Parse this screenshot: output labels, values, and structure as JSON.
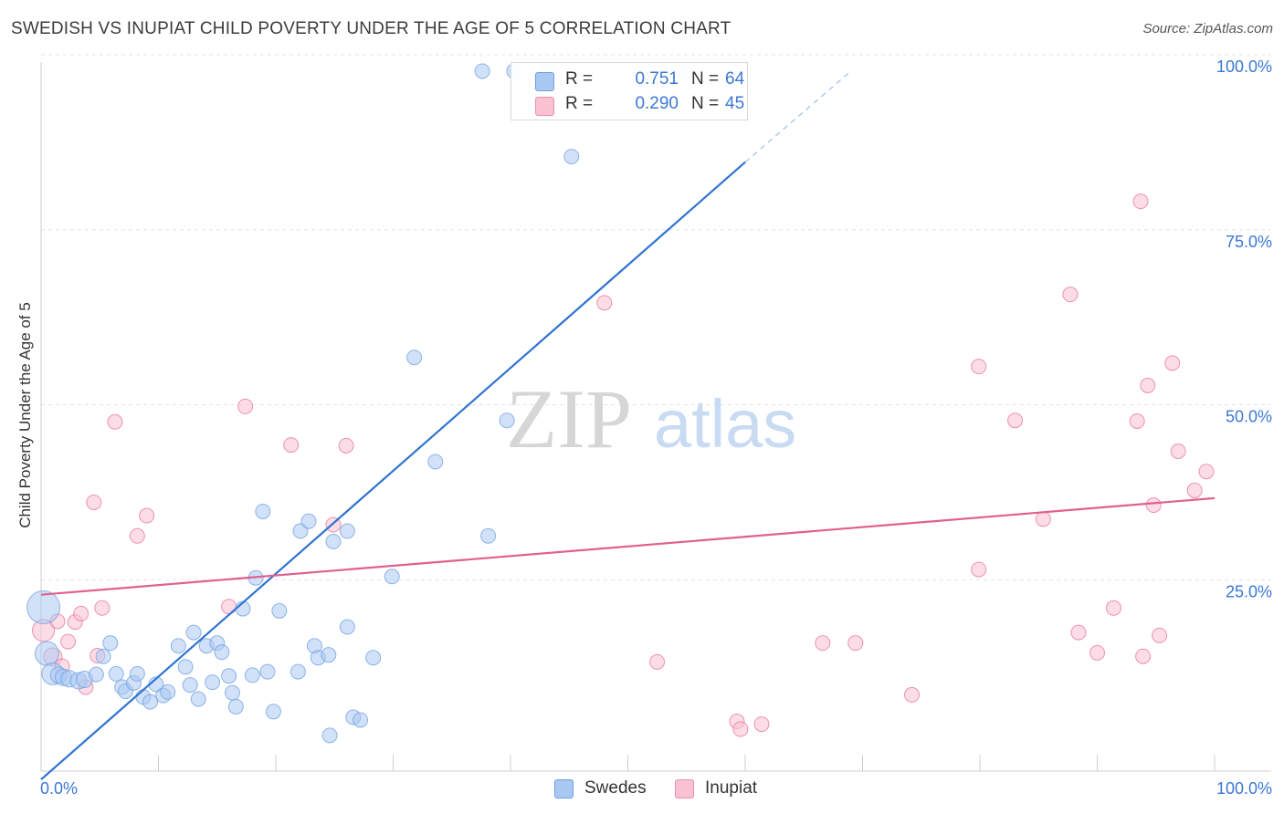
{
  "title": "SWEDISH VS INUPIAT CHILD POVERTY UNDER THE AGE OF 5 CORRELATION CHART",
  "source": "Source: ZipAtlas.com",
  "watermark": {
    "zip": "ZIP",
    "atlas": "atlas"
  },
  "legend": {
    "r_label": "R =",
    "n_label": "N =",
    "rows": [
      {
        "r": "0.751",
        "n": "64",
        "color": "#a9c9f3",
        "border": "#6f9fe0"
      },
      {
        "r": "0.290",
        "n": "45",
        "color": "#f9c1d2",
        "border": "#e891ad"
      }
    ]
  },
  "chart_data": {
    "type": "scatter",
    "title": "SWEDISH VS INUPIAT CHILD POVERTY UNDER THE AGE OF 5 CORRELATION CHART",
    "xlabel": "",
    "ylabel": "Child Poverty Under the Age of 5",
    "xlim": [
      0,
      100
    ],
    "ylim": [
      0,
      100
    ],
    "x_tick_labels": [
      "0.0%",
      "100.0%"
    ],
    "y_tick_labels": [
      "25.0%",
      "50.0%",
      "75.0%",
      "100.0%"
    ],
    "grid": true,
    "legend_position": "bottom",
    "series": [
      {
        "name": "Swedes",
        "color": "#6f9fe0",
        "fill": "#a9c9f3",
        "r": 0.751,
        "n": 64,
        "trend": {
          "x0": 0,
          "y0": -1.2,
          "x1": 60,
          "y1": 87,
          "dashed_to": {
            "x": 69,
            "y": 100
          }
        },
        "points": [
          [
            0.2,
            23.4,
            17
          ],
          [
            0.5,
            16.8,
            12
          ],
          [
            1.0,
            13.9,
            11
          ],
          [
            1.5,
            13.7,
            8
          ],
          [
            1.9,
            13.4,
            8
          ],
          [
            2.4,
            13.2,
            8
          ],
          [
            3.2,
            12.9,
            8
          ],
          [
            3.7,
            13.1,
            8
          ],
          [
            4.7,
            13.8,
            7
          ],
          [
            5.3,
            16.4,
            7
          ],
          [
            5.9,
            18.3,
            7
          ],
          [
            6.4,
            13.9,
            7
          ],
          [
            6.9,
            12.0,
            7
          ],
          [
            7.2,
            11.4,
            7
          ],
          [
            7.9,
            12.6,
            7
          ],
          [
            8.2,
            13.9,
            7
          ],
          [
            8.7,
            10.6,
            7
          ],
          [
            9.3,
            9.9,
            7
          ],
          [
            9.8,
            12.4,
            7
          ],
          [
            10.4,
            10.8,
            7
          ],
          [
            10.8,
            11.3,
            7
          ],
          [
            11.7,
            17.9,
            7
          ],
          [
            12.3,
            14.9,
            7
          ],
          [
            12.7,
            12.3,
            7
          ],
          [
            13.0,
            19.8,
            7
          ],
          [
            13.4,
            10.3,
            7
          ],
          [
            14.1,
            17.9,
            7
          ],
          [
            14.6,
            12.7,
            7
          ],
          [
            15.0,
            18.3,
            7
          ],
          [
            15.4,
            17.0,
            7
          ],
          [
            16.0,
            13.6,
            7
          ],
          [
            16.3,
            11.2,
            7
          ],
          [
            16.6,
            9.2,
            7
          ],
          [
            17.2,
            23.2,
            7
          ],
          [
            18.0,
            13.7,
            7
          ],
          [
            18.3,
            27.6,
            7
          ],
          [
            18.9,
            37.1,
            7
          ],
          [
            19.3,
            14.2,
            7
          ],
          [
            19.8,
            8.5,
            7
          ],
          [
            20.3,
            22.9,
            7
          ],
          [
            21.9,
            14.2,
            7
          ],
          [
            22.1,
            34.3,
            7
          ],
          [
            22.8,
            35.7,
            7
          ],
          [
            23.3,
            17.9,
            7
          ],
          [
            23.6,
            16.2,
            7
          ],
          [
            24.5,
            16.6,
            7
          ],
          [
            24.6,
            5.1,
            7
          ],
          [
            24.9,
            32.8,
            7
          ],
          [
            26.1,
            34.3,
            7
          ],
          [
            26.1,
            20.6,
            7
          ],
          [
            26.6,
            7.7,
            7
          ],
          [
            27.2,
            7.3,
            7
          ],
          [
            28.3,
            16.2,
            7
          ],
          [
            29.9,
            27.8,
            7
          ],
          [
            31.8,
            59.1,
            7
          ],
          [
            33.6,
            44.2,
            7
          ],
          [
            37.6,
            100.0,
            7
          ],
          [
            38.1,
            33.6,
            7
          ],
          [
            39.7,
            50.1,
            7
          ],
          [
            40.3,
            100.0,
            7
          ],
          [
            43.1,
            100.0,
            7
          ],
          [
            45.2,
            87.8,
            7
          ],
          [
            54.2,
            100.0,
            7
          ],
          [
            54.8,
            100.0,
            7
          ]
        ]
      },
      {
        "name": "Inupiat",
        "color": "#e8709a",
        "fill": "#f9c1d2",
        "r": 0.29,
        "n": 45,
        "trend": {
          "x0": 0,
          "y0": 25.2,
          "x1": 100,
          "y1": 39.0
        },
        "points": [
          [
            0.2,
            20.1,
            11
          ],
          [
            1.0,
            16.3,
            9
          ],
          [
            1.4,
            21.4,
            7
          ],
          [
            1.8,
            15.0,
            7
          ],
          [
            2.3,
            18.5,
            7
          ],
          [
            2.9,
            21.3,
            7
          ],
          [
            3.4,
            22.5,
            7
          ],
          [
            3.8,
            12.0,
            7
          ],
          [
            4.5,
            38.4,
            7
          ],
          [
            4.8,
            16.5,
            7
          ],
          [
            5.2,
            23.3,
            7
          ],
          [
            6.3,
            49.9,
            7
          ],
          [
            8.2,
            33.6,
            7
          ],
          [
            9.0,
            36.5,
            7
          ],
          [
            16.0,
            23.5,
            7
          ],
          [
            17.4,
            52.1,
            7
          ],
          [
            21.3,
            46.6,
            7
          ],
          [
            24.9,
            35.2,
            7
          ],
          [
            26.0,
            46.5,
            7
          ],
          [
            48.0,
            66.9,
            7
          ],
          [
            52.5,
            15.6,
            7
          ],
          [
            59.3,
            7.1,
            7
          ],
          [
            59.6,
            6.0,
            7
          ],
          [
            61.4,
            6.7,
            7
          ],
          [
            66.6,
            18.3,
            7
          ],
          [
            69.4,
            18.3,
            7
          ],
          [
            74.2,
            10.9,
            7
          ],
          [
            79.9,
            57.8,
            7
          ],
          [
            79.9,
            28.8,
            7
          ],
          [
            83.0,
            50.1,
            7
          ],
          [
            85.4,
            36.0,
            7
          ],
          [
            87.7,
            68.1,
            7
          ],
          [
            88.4,
            19.8,
            7
          ],
          [
            90.0,
            16.9,
            7
          ],
          [
            91.4,
            23.3,
            7
          ],
          [
            93.4,
            50.0,
            7
          ],
          [
            93.7,
            81.4,
            7
          ],
          [
            93.9,
            16.4,
            7
          ],
          [
            94.3,
            55.1,
            7
          ],
          [
            94.8,
            38.0,
            7
          ],
          [
            95.3,
            19.4,
            7
          ],
          [
            96.4,
            58.3,
            7
          ],
          [
            96.9,
            45.7,
            7
          ],
          [
            98.3,
            40.1,
            7
          ],
          [
            99.3,
            42.8,
            7
          ]
        ]
      }
    ]
  }
}
